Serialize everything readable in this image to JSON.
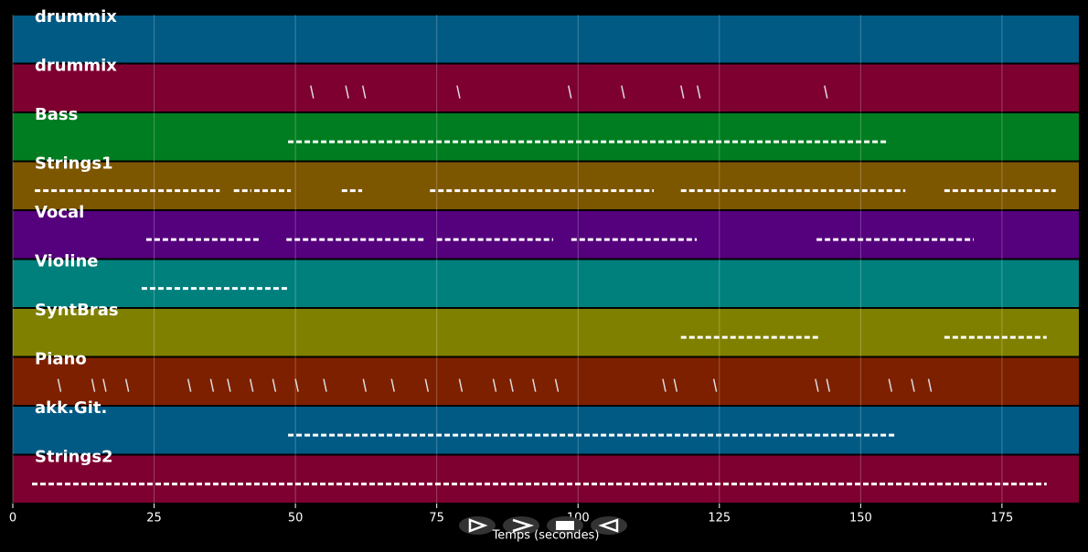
{
  "chart_data": {
    "type": "piano-roll",
    "xlabel": "Temps (secondes)",
    "xlim": [
      0,
      188.6
    ],
    "xticks": [
      0,
      25,
      50,
      75,
      100,
      125,
      150,
      175
    ],
    "grid": true,
    "tracks": [
      {
        "name": "drummix",
        "color": "#005a84",
        "segments": [],
        "events": []
      },
      {
        "name": "drummix",
        "color": "#7d0030",
        "segments": [],
        "events": [
          52.7,
          58.9,
          61.9,
          78.6,
          98.3,
          107.7,
          118.2,
          121.1,
          143.6
        ]
      },
      {
        "name": "Bass",
        "color": "#007d20",
        "segments": [
          [
            48.7,
            154.6
          ]
        ],
        "events": []
      },
      {
        "name": "Strings1",
        "color": "#7d5600",
        "segments": [
          [
            3.9,
            36.6
          ],
          [
            39.1,
            42.2
          ],
          [
            42.7,
            49.2
          ],
          [
            58.2,
            61.8
          ],
          [
            73.8,
            113.4
          ],
          [
            118.2,
            157.9
          ],
          [
            164.8,
            184.5
          ]
        ],
        "events": []
      },
      {
        "name": "Vocal",
        "color": "#55007d",
        "segments": [
          [
            23.6,
            43.8
          ],
          [
            48.4,
            72.9
          ],
          [
            75,
            95.6
          ],
          [
            98.8,
            121
          ],
          [
            142.2,
            170
          ]
        ],
        "events": []
      },
      {
        "name": "Violine",
        "color": "#00807d",
        "segments": [
          [
            22.8,
            48.7
          ]
        ],
        "events": []
      },
      {
        "name": "SyntBras",
        "color": "#808000",
        "segments": [
          [
            118.2,
            142.8
          ],
          [
            164.8,
            182.9
          ]
        ],
        "events": []
      },
      {
        "name": "Piano",
        "color": "#7d2000",
        "segments": [],
        "events": [
          8,
          14,
          16,
          20,
          31,
          35,
          38,
          42,
          46,
          50,
          55,
          62,
          67,
          73,
          79,
          85,
          88,
          92,
          96,
          115,
          117,
          124,
          142,
          144,
          155,
          159,
          162
        ]
      },
      {
        "name": "akk.Git.",
        "color": "#005a84",
        "segments": [
          [
            48.7,
            156.2
          ]
        ],
        "events": []
      },
      {
        "name": "Strings2",
        "color": "#7d0030",
        "segments": [
          [
            3.4,
            182.9
          ]
        ],
        "events": []
      }
    ]
  }
}
